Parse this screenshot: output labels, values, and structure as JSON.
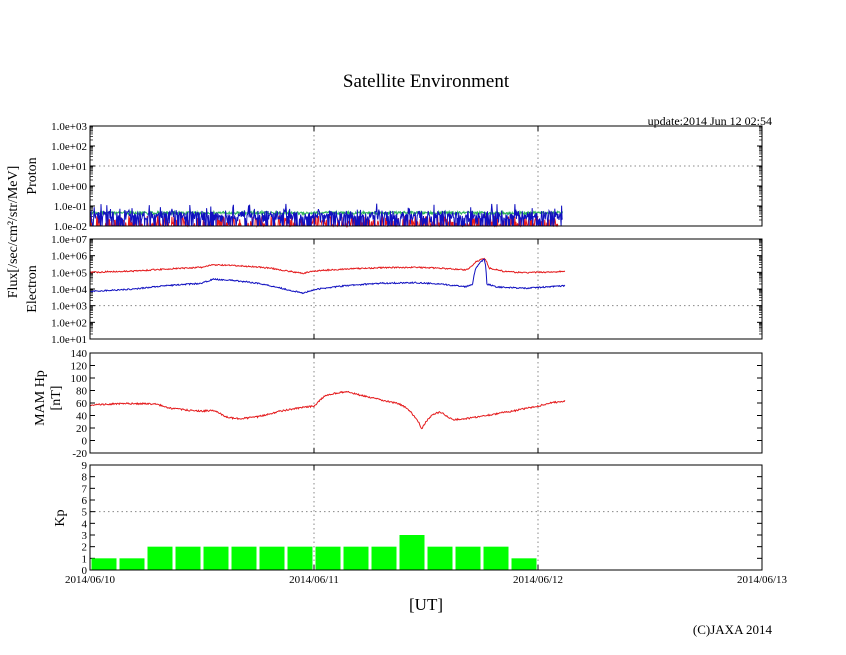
{
  "chart_data": {
    "title": "Satellite Environment",
    "update_text": "update:2014 Jun 12 02:54",
    "copyright": "(C)JAXA 2014",
    "shared_ylabel": "Flux[/sec/cm²/str/MeV]",
    "x_axis": {
      "label": "[UT]",
      "ticks": [
        "2014/06/10",
        "2014/06/11",
        "2014/06/12",
        "2014/06/13"
      ],
      "range_days": [
        0,
        3
      ]
    },
    "colors": {
      "red": "#e41a1c",
      "blue": "#1010c0",
      "green": "#2db35c",
      "kp_bar": "#00ff00",
      "grid": "#888888",
      "threshold": "#888888"
    },
    "panels": [
      {
        "id": "proton",
        "type": "line",
        "scale": "log",
        "ylabel": "Proton",
        "ylim": [
          0.01,
          1000
        ],
        "ytick_labels": [
          "1.0e-02",
          "1.0e-01",
          "1.0e+00",
          "1.0e+01",
          "1.0e+02",
          "1.0e+03"
        ],
        "threshold": 10,
        "series": [
          {
            "color": "red",
            "base": 0.012,
            "noise_log": 0.9,
            "spiky": true
          },
          {
            "color": "green",
            "base": 0.045,
            "noise_log": 0.15
          },
          {
            "color": "blue",
            "base": 0.035,
            "noise_log": 0.45,
            "spiky": true
          }
        ],
        "data_end_day": 2.11
      },
      {
        "id": "electron",
        "type": "line",
        "scale": "log",
        "ylabel": "Electron",
        "ylim": [
          10,
          10000000
        ],
        "ytick_labels": [
          "1.0e+01",
          "1.0e+02",
          "1.0e+03",
          "1.0e+04",
          "1.0e+05",
          "1.0e+06",
          "1.0e+07"
        ],
        "threshold": 1000,
        "series": [
          {
            "color": "red",
            "points": [
              [
                0,
                100000
              ],
              [
                0.2,
                120000
              ],
              [
                0.35,
                160000
              ],
              [
                0.5,
                200000
              ],
              [
                0.55,
                280000
              ],
              [
                0.6,
                270000
              ],
              [
                0.75,
                210000
              ],
              [
                0.8,
                180000
              ],
              [
                0.88,
                120000
              ],
              [
                0.95,
                85000
              ],
              [
                1.0,
                120000
              ],
              [
                1.15,
                160000
              ],
              [
                1.3,
                190000
              ],
              [
                1.45,
                200000
              ],
              [
                1.55,
                180000
              ],
              [
                1.65,
                150000
              ],
              [
                1.68,
                140000
              ],
              [
                1.7,
                200000
              ],
              [
                1.72,
                400000
              ],
              [
                1.76,
                700000
              ],
              [
                1.78,
                180000
              ],
              [
                1.85,
                110000
              ],
              [
                1.95,
                95000
              ],
              [
                2.1,
                110000
              ],
              [
                2.12,
                115000
              ]
            ]
          },
          {
            "color": "blue",
            "points": [
              [
                0,
                7000
              ],
              [
                0.2,
                10000
              ],
              [
                0.35,
                16000
              ],
              [
                0.5,
                22000
              ],
              [
                0.55,
                38000
              ],
              [
                0.6,
                36000
              ],
              [
                0.75,
                22000
              ],
              [
                0.8,
                16000
              ],
              [
                0.88,
                9000
              ],
              [
                0.95,
                5500
              ],
              [
                1.0,
                9000
              ],
              [
                1.15,
                16000
              ],
              [
                1.3,
                22000
              ],
              [
                1.45,
                24000
              ],
              [
                1.55,
                20000
              ],
              [
                1.65,
                15000
              ],
              [
                1.68,
                14000
              ],
              [
                1.71,
                20000
              ],
              [
                1.76,
                600000
              ],
              [
                1.77,
                20000
              ],
              [
                1.82,
                13000
              ],
              [
                1.95,
                11000
              ],
              [
                2.1,
                15000
              ],
              [
                2.12,
                15500
              ]
            ]
          }
        ]
      },
      {
        "id": "hp",
        "type": "line",
        "scale": "linear",
        "ylabel": "MAM Hp",
        "ylabel2": "[nT]",
        "ylim": [
          -20,
          140
        ],
        "yticks": [
          -20,
          0,
          20,
          40,
          60,
          80,
          100,
          120,
          140
        ],
        "series": [
          {
            "color": "red",
            "points": [
              [
                0,
                57
              ],
              [
                0.15,
                59
              ],
              [
                0.25,
                59
              ],
              [
                0.3,
                58
              ],
              [
                0.35,
                52
              ],
              [
                0.45,
                48
              ],
              [
                0.5,
                47
              ],
              [
                0.55,
                48
              ],
              [
                0.58,
                44
              ],
              [
                0.6,
                38
              ],
              [
                0.65,
                35
              ],
              [
                0.7,
                36
              ],
              [
                0.75,
                38
              ],
              [
                0.85,
                47
              ],
              [
                0.95,
                53
              ],
              [
                1.0,
                55
              ],
              [
                1.02,
                62
              ],
              [
                1.05,
                72
              ],
              [
                1.1,
                76
              ],
              [
                1.15,
                78
              ],
              [
                1.2,
                73
              ],
              [
                1.25,
                69
              ],
              [
                1.32,
                63
              ],
              [
                1.38,
                59
              ],
              [
                1.42,
                50
              ],
              [
                1.45,
                38
              ],
              [
                1.47,
                28
              ],
              [
                1.48,
                18
              ],
              [
                1.5,
                30
              ],
              [
                1.53,
                42
              ],
              [
                1.56,
                45
              ],
              [
                1.58,
                43
              ],
              [
                1.6,
                37
              ],
              [
                1.62,
                33
              ],
              [
                1.7,
                36
              ],
              [
                1.8,
                42
              ],
              [
                1.9,
                48
              ],
              [
                2.0,
                55
              ],
              [
                2.05,
                60
              ],
              [
                2.1,
                62
              ],
              [
                2.12,
                63
              ]
            ]
          }
        ]
      },
      {
        "id": "kp",
        "type": "bar",
        "scale": "linear",
        "ylabel": "Kp",
        "ylim": [
          0,
          9
        ],
        "yticks": [
          0,
          1,
          2,
          3,
          4,
          5,
          6,
          7,
          8,
          9
        ],
        "threshold": 5,
        "bar_width_days": 0.125,
        "values": [
          1,
          1,
          2,
          2,
          2,
          2,
          2,
          2,
          2,
          2,
          2,
          3,
          2,
          2,
          2,
          1
        ]
      }
    ]
  }
}
